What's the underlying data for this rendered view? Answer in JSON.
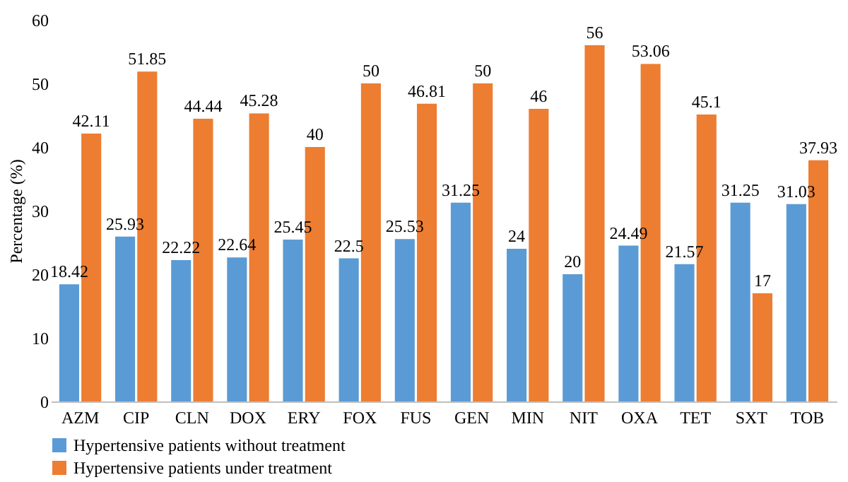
{
  "chart_data": {
    "type": "bar",
    "ylabel": "Percentage (%)",
    "categories": [
      "AZM",
      "CIP",
      "CLN",
      "DOX",
      "ERY",
      "FOX",
      "FUS",
      "GEN",
      "MIN",
      "NIT",
      "OXA",
      "TET",
      "SXT",
      "TOB"
    ],
    "series": [
      {
        "name": "Hypertensive patients without treatment",
        "color": "#5b9bd5",
        "values": [
          18.42,
          25.93,
          22.22,
          22.64,
          25.45,
          22.5,
          25.53,
          31.25,
          24,
          20,
          24.49,
          21.57,
          31.25,
          31.03
        ]
      },
      {
        "name": "Hypertensive patients under treatment",
        "color": "#ed7d31",
        "values": [
          42.11,
          51.85,
          44.44,
          45.28,
          40,
          50,
          46.81,
          50,
          46,
          56,
          53.06,
          45.1,
          17,
          37.93
        ]
      }
    ],
    "ylim": [
      0,
      60
    ],
    "yticks": [
      0,
      10,
      20,
      30,
      40,
      50,
      60
    ],
    "grid": false,
    "legend": "bottom left",
    "data_labels": true
  }
}
